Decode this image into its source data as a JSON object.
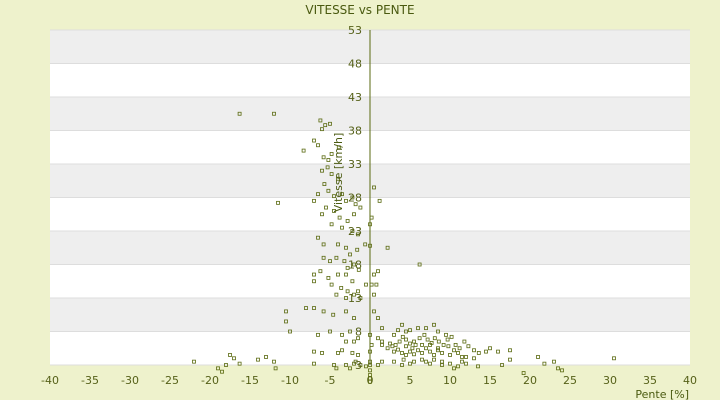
{
  "chart_data": {
    "type": "scatter",
    "title": "VITESSE vs PENTE",
    "xlabel": "Pente [%]",
    "ylabel": "Vitesse [km/h]",
    "xlim": [
      -40,
      40
    ],
    "ylim": [
      3,
      53
    ],
    "x_ticks": [
      "-40",
      "-35",
      "-30",
      "-25",
      "-20",
      "-15",
      "-10",
      "-5",
      "0",
      "5",
      "10",
      "15",
      "20",
      "25",
      "30",
      "35",
      "40"
    ],
    "y_ticks": [
      "3",
      "8",
      "13",
      "18",
      "23",
      "28",
      "33",
      "38",
      "43",
      "48",
      "53"
    ],
    "grid": true,
    "legend": "none",
    "colors": {
      "background": "#eef2cc",
      "plot_white_band": "#ffffff",
      "plot_grey_band": "#eeeeee",
      "point": "#5a6a10",
      "axis": "#5a6a10"
    },
    "series": [
      {
        "points": [
          [
            -16.3,
            40.5
          ],
          [
            -12,
            40.5
          ],
          [
            -6.2,
            39.5
          ],
          [
            -5.6,
            38.8
          ],
          [
            -5.0,
            39.0
          ],
          [
            -6.0,
            38.2
          ],
          [
            -7.0,
            36.5
          ],
          [
            -6.5,
            35.8
          ],
          [
            -8.3,
            35.0
          ],
          [
            -5.8,
            34.0
          ],
          [
            -4.8,
            34.5
          ],
          [
            -5.2,
            33.6
          ],
          [
            -3.9,
            35.5
          ],
          [
            -5.3,
            32.5
          ],
          [
            -6.0,
            32.0
          ],
          [
            -4.8,
            31.5
          ],
          [
            -4.0,
            30.8
          ],
          [
            -5.7,
            30.0
          ],
          [
            -6.5,
            28.5
          ],
          [
            -5.2,
            29.0
          ],
          [
            -4.5,
            28.2
          ],
          [
            -3.5,
            28.5
          ],
          [
            -11.5,
            27.2
          ],
          [
            -7.0,
            27.5
          ],
          [
            -5.5,
            26.5
          ],
          [
            -6.0,
            25.5
          ],
          [
            -4.5,
            26.0
          ],
          [
            -3.8,
            25.0
          ],
          [
            -3.0,
            27.5
          ],
          [
            -2.2,
            28.0
          ],
          [
            -1.8,
            27.0
          ],
          [
            -2.0,
            25.5
          ],
          [
            -1.2,
            26.5
          ],
          [
            0.5,
            29.5
          ],
          [
            1.2,
            27.5
          ],
          [
            0.2,
            25.0
          ],
          [
            -4.8,
            24.0
          ],
          [
            -3.5,
            23.5
          ],
          [
            -2.8,
            24.5
          ],
          [
            -2.2,
            23.0
          ],
          [
            -1.5,
            22.5
          ],
          [
            0.0,
            24.0
          ],
          [
            -6.5,
            22.0
          ],
          [
            -5.8,
            21.0
          ],
          [
            -4.0,
            21.0
          ],
          [
            -3.0,
            20.5
          ],
          [
            -2.5,
            19.5
          ],
          [
            -1.6,
            20.2
          ],
          [
            -0.6,
            21.0
          ],
          [
            0.0,
            20.8
          ],
          [
            2.2,
            20.5
          ],
          [
            -5.8,
            19.0
          ],
          [
            -5.0,
            18.5
          ],
          [
            -4.2,
            19.0
          ],
          [
            -3.2,
            18.5
          ],
          [
            -2.8,
            17.5
          ],
          [
            -2.0,
            18.0
          ],
          [
            -1.4,
            17.2
          ],
          [
            6.2,
            18.0
          ],
          [
            -7.0,
            16.5
          ],
          [
            -6.2,
            17.0
          ],
          [
            -5.2,
            16.0
          ],
          [
            -4.0,
            16.5
          ],
          [
            -3.0,
            16.5
          ],
          [
            -2.2,
            15.5
          ],
          [
            0.5,
            16.5
          ],
          [
            1.0,
            17.0
          ],
          [
            -7.0,
            15.5
          ],
          [
            -4.8,
            15.0
          ],
          [
            -3.6,
            14.5
          ],
          [
            -2.8,
            14.0
          ],
          [
            -1.5,
            14.0
          ],
          [
            -0.5,
            15.0
          ],
          [
            0.2,
            15.0
          ],
          [
            0.8,
            15.0
          ],
          [
            -4.2,
            13.5
          ],
          [
            -3.0,
            13.0
          ],
          [
            -2.0,
            13.5
          ],
          [
            -1.2,
            13.0
          ],
          [
            0.5,
            13.5
          ],
          [
            -8.0,
            11.5
          ],
          [
            -7.0,
            11.5
          ],
          [
            -10.5,
            11.0
          ],
          [
            -5.8,
            11.0
          ],
          [
            -4.6,
            10.5
          ],
          [
            -3.0,
            11.0
          ],
          [
            -2.0,
            10.0
          ],
          [
            0.5,
            11.0
          ],
          [
            1.0,
            10.0
          ],
          [
            -10.0,
            8.0
          ],
          [
            -6.5,
            7.5
          ],
          [
            -5.0,
            8.0
          ],
          [
            -3.5,
            7.5
          ],
          [
            -2.5,
            8.0
          ],
          [
            -1.5,
            7.0
          ],
          [
            0.0,
            7.5
          ],
          [
            1.0,
            7.0
          ],
          [
            1.5,
            8.5
          ],
          [
            -10.5,
            9.5
          ],
          [
            -3.0,
            6.5
          ],
          [
            -2.0,
            6.5
          ],
          [
            1.5,
            6.5
          ],
          [
            0.2,
            6.0
          ],
          [
            -7.0,
            5.0
          ],
          [
            -6.0,
            4.8
          ],
          [
            -4.0,
            4.8
          ],
          [
            -3.5,
            5.2
          ],
          [
            -2.2,
            4.8
          ],
          [
            -1.5,
            4.5
          ],
          [
            0.0,
            5.0
          ],
          [
            1.5,
            6.0
          ],
          [
            -17.0,
            4.0
          ],
          [
            -17.5,
            4.5
          ],
          [
            -14.0,
            3.8
          ],
          [
            -13.0,
            4.2
          ],
          [
            -12.0,
            3.5
          ],
          [
            -18.0,
            3.0
          ],
          [
            -19.0,
            2.5
          ],
          [
            -18.5,
            2.0
          ],
          [
            -22.0,
            3.5
          ],
          [
            -16.3,
            3.2
          ],
          [
            -11.8,
            2.5
          ],
          [
            -7.0,
            3.2
          ],
          [
            -4.5,
            3.0
          ],
          [
            -4.2,
            2.5
          ],
          [
            -3.0,
            3.0
          ],
          [
            -2.0,
            3.2
          ],
          [
            -2.5,
            2.5
          ],
          [
            -1.8,
            3.5
          ],
          [
            -1.2,
            3.0
          ],
          [
            -0.5,
            2.8
          ],
          [
            0.0,
            3.5
          ],
          [
            0.0,
            3.0
          ],
          [
            0.0,
            2.2
          ],
          [
            0.0,
            1.5
          ],
          [
            0.0,
            1.0
          ],
          [
            0.0,
            0.5
          ],
          [
            1.0,
            3.0
          ],
          [
            1.5,
            3.5
          ],
          [
            2.2,
            5.5
          ],
          [
            2.8,
            5.8
          ],
          [
            3.2,
            6.0
          ],
          [
            3.7,
            6.5
          ],
          [
            4.1,
            7.2
          ],
          [
            4.5,
            6.8
          ],
          [
            5.0,
            6.2
          ],
          [
            5.3,
            5.5
          ],
          [
            5.7,
            6.0
          ],
          [
            6.2,
            7.0
          ],
          [
            6.8,
            7.5
          ],
          [
            7.2,
            6.8
          ],
          [
            7.7,
            6.3
          ],
          [
            8.1,
            7.0
          ],
          [
            8.6,
            6.5
          ],
          [
            9.2,
            6.0
          ],
          [
            9.7,
            6.8
          ],
          [
            10.2,
            7.2
          ],
          [
            10.7,
            6.0
          ],
          [
            11.2,
            5.5
          ],
          [
            11.8,
            6.5
          ],
          [
            12.3,
            5.8
          ],
          [
            13.0,
            5.2
          ],
          [
            13.6,
            4.8
          ],
          [
            14.5,
            5.0
          ],
          [
            15.0,
            5.5
          ],
          [
            16.0,
            5.0
          ],
          [
            17.5,
            5.2
          ],
          [
            3.0,
            5.0
          ],
          [
            3.5,
            5.3
          ],
          [
            4.0,
            4.8
          ],
          [
            4.5,
            4.5
          ],
          [
            5.0,
            5.0
          ],
          [
            5.5,
            4.6
          ],
          [
            6.0,
            5.2
          ],
          [
            6.5,
            4.8
          ],
          [
            7.0,
            5.5
          ],
          [
            7.5,
            5.0
          ],
          [
            8.0,
            4.5
          ],
          [
            8.5,
            5.2
          ],
          [
            9.0,
            4.8
          ],
          [
            10.0,
            4.5
          ],
          [
            11.0,
            4.8
          ],
          [
            12.0,
            4.2
          ],
          [
            13.0,
            4.0
          ],
          [
            4.5,
            8.0
          ],
          [
            6.0,
            8.5
          ],
          [
            7.0,
            8.5
          ],
          [
            8.0,
            9.0
          ],
          [
            8.5,
            8.0
          ],
          [
            4.0,
            9.0
          ],
          [
            5.0,
            8.2
          ],
          [
            9.5,
            7.5
          ],
          [
            3.0,
            7.5
          ],
          [
            3.5,
            8.2
          ],
          [
            2.5,
            6.2
          ],
          [
            6.5,
            6.0
          ],
          [
            7.5,
            6.0
          ],
          [
            5.5,
            6.5
          ],
          [
            4.5,
            5.8
          ],
          [
            8.5,
            5.5
          ],
          [
            9.8,
            5.8
          ],
          [
            10.5,
            5.2
          ],
          [
            11.5,
            4.2
          ],
          [
            3.0,
            3.5
          ],
          [
            4.2,
            3.8
          ],
          [
            5.5,
            3.5
          ],
          [
            6.5,
            3.8
          ],
          [
            7.5,
            3.2
          ],
          [
            4.0,
            3.0
          ],
          [
            5.0,
            3.2
          ],
          [
            7.0,
            3.5
          ],
          [
            8.0,
            3.8
          ],
          [
            9.0,
            3.5
          ],
          [
            10.0,
            3.2
          ],
          [
            11.0,
            2.8
          ],
          [
            12.0,
            3.2
          ],
          [
            13.5,
            2.8
          ],
          [
            16.5,
            3.0
          ],
          [
            17.5,
            3.8
          ],
          [
            21.0,
            4.2
          ],
          [
            21.8,
            3.2
          ],
          [
            23.0,
            3.5
          ],
          [
            23.5,
            2.5
          ],
          [
            24.0,
            2.2
          ],
          [
            19.2,
            1.8
          ],
          [
            30.5,
            4.0
          ],
          [
            11.5,
            3.5
          ],
          [
            9.0,
            3.0
          ],
          [
            10.5,
            2.5
          ]
        ]
      }
    ]
  }
}
